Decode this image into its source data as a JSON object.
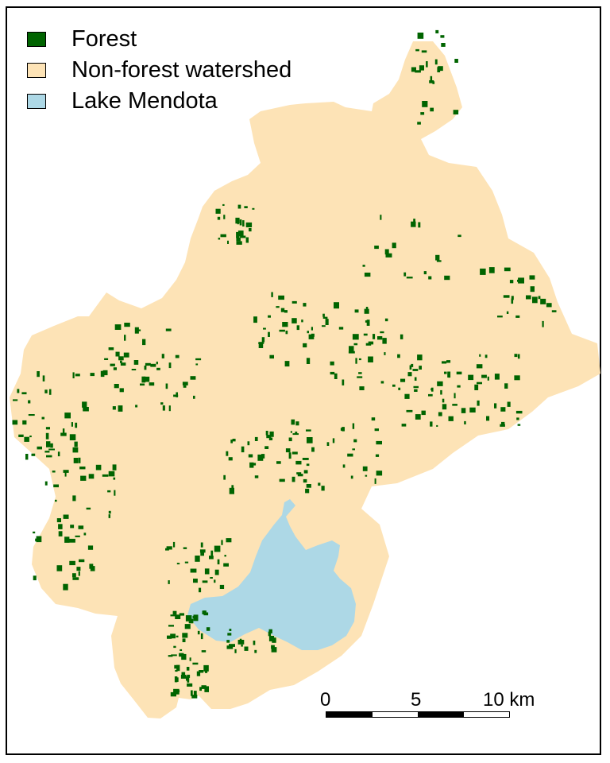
{
  "legend": {
    "items": [
      {
        "label": "Forest",
        "color": "#006400",
        "icon": "forest-swatch"
      },
      {
        "label": "Non-forest watershed",
        "color": "#fde3b6",
        "icon": "non-forest-swatch"
      },
      {
        "label": "Lake Mendota",
        "color": "#add8e6",
        "icon": "lake-swatch"
      }
    ]
  },
  "scale_bar": {
    "labels": [
      "0",
      "5",
      "10 km"
    ],
    "ticks_km": [
      0,
      5,
      10
    ]
  },
  "colors": {
    "forest": "#006400",
    "watershed": "#fde3b6",
    "lake": "#add8e6",
    "frame": "#000000"
  }
}
